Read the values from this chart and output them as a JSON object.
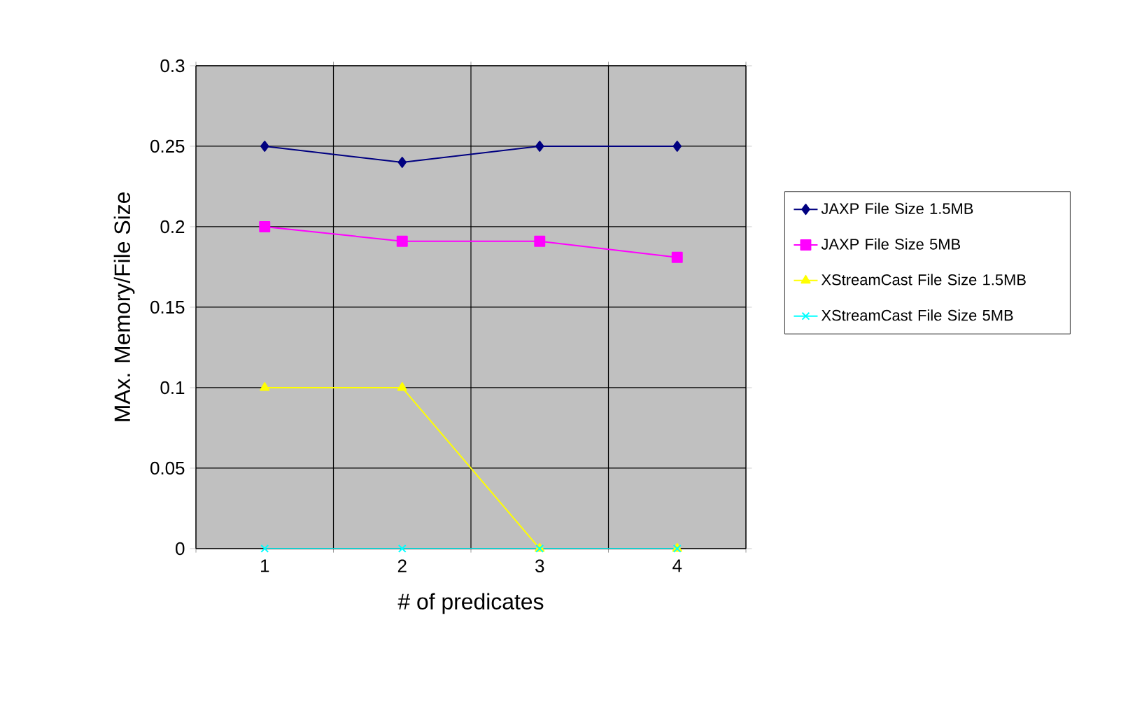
{
  "chart_data": {
    "type": "line",
    "xlabel": "# of predicates",
    "ylabel": "MAx. Memory/File Size",
    "categories": [
      "1",
      "2",
      "3",
      "4"
    ],
    "ylim": [
      0,
      0.3
    ],
    "yticks": [
      0,
      0.05,
      0.1,
      0.15,
      0.2,
      0.25,
      0.3
    ],
    "grid": true,
    "legend": "right",
    "line_style": "solid",
    "series": [
      {
        "name": "JAXP File Size 1.5MB",
        "color": "#000080",
        "marker": "diamond",
        "values": [
          0.25,
          0.24,
          0.25,
          0.25
        ]
      },
      {
        "name": "JAXP File Size 5MB",
        "color": "#ff00ff",
        "marker": "square",
        "values": [
          0.2,
          0.191,
          0.191,
          0.181
        ]
      },
      {
        "name": "XStreamCast File Size 1.5MB",
        "color": "#ffff00",
        "marker": "triangle",
        "values": [
          0.1,
          0.1,
          0,
          0
        ]
      },
      {
        "name": "XStreamCast File Size 5MB",
        "color": "#00ffff",
        "marker": "cross",
        "values": [
          0,
          0,
          0,
          0
        ]
      }
    ]
  }
}
